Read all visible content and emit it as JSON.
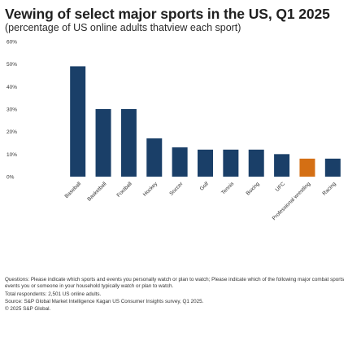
{
  "title": "Vewing of select major sports in the US, Q1 2025",
  "subtitle": "(percentage of US online adults thatview each sport)",
  "chart_data": {
    "type": "bar",
    "categories": [
      "Baseball",
      "Basketball",
      "Football",
      "Hockey",
      "Soccer",
      "Golf",
      "Tennis",
      "Boxing",
      "UFC",
      "Professional wrestling",
      "Racing"
    ],
    "values": [
      49,
      30,
      30,
      17,
      13,
      12,
      12,
      12,
      10,
      8,
      8
    ],
    "ylim": [
      0,
      60
    ],
    "yticks": [
      "0%",
      "10%",
      "20%",
      "30%",
      "40%",
      "50%",
      "60%"
    ],
    "highlight_index": 9,
    "bar_color": "#1a3f68",
    "highlight_color": "#d46f14",
    "grid": false
  },
  "notes": {
    "questions": "Questions: Please indicate which sports and events you personally watch or plan to watch; Please indicate which of the following major combat sports events you or someone in your household typically watch or plan to watch.",
    "total": "Total respondents: 2,501 US online adults.",
    "source": "Source: S&P Global Market Intelligence Kagan US Consumer Insights survey, Q1 2025.",
    "copyright": "© 2025 S&P Global."
  }
}
